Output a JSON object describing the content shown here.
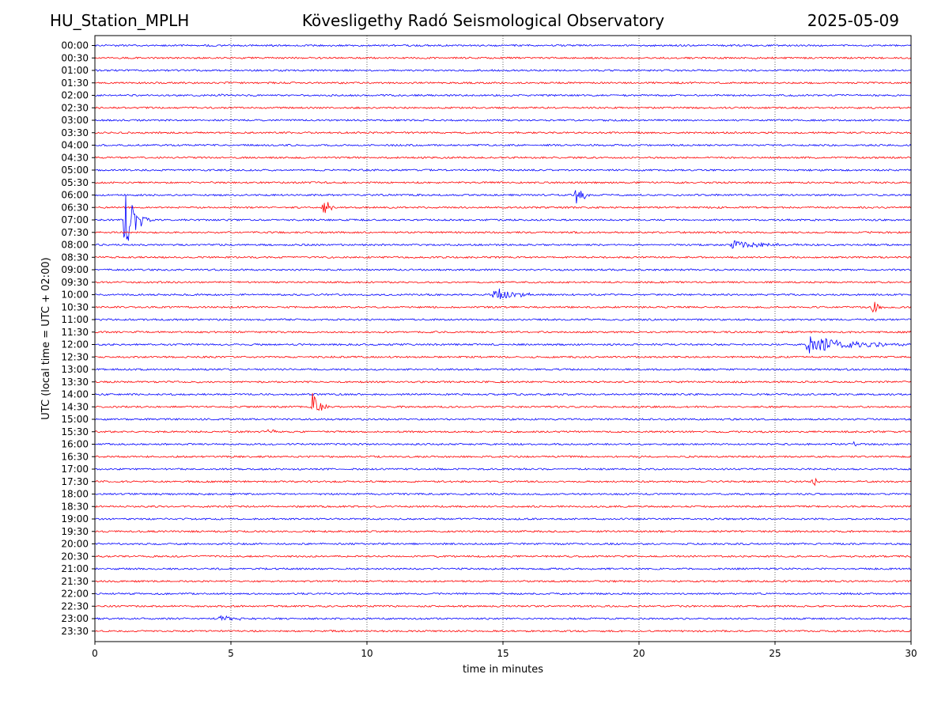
{
  "header": {
    "station": "HU_Station_MPLH",
    "observatory": "Kövesligethy Radó Seismological Observatory",
    "date": "2025-05-09"
  },
  "chart_data": {
    "type": "line",
    "title": "Kövesligethy Radó Seismological Observatory",
    "xlabel": "time in minutes",
    "ylabel": "UTC (local time = UTC + 02:00)",
    "xlim": [
      0,
      30
    ],
    "x_ticks": [
      "0",
      "5",
      "10",
      "15",
      "20",
      "25",
      "30"
    ],
    "x_tick_values": [
      0,
      5,
      10,
      15,
      20,
      25,
      30
    ],
    "grid": "vertical dotted at each x tick",
    "trace_colors": [
      "#0000ff",
      "#ff0000"
    ],
    "rows": [
      "00:00",
      "00:30",
      "01:00",
      "01:30",
      "02:00",
      "02:30",
      "03:00",
      "03:30",
      "04:00",
      "04:30",
      "05:00",
      "05:30",
      "06:00",
      "06:30",
      "07:00",
      "07:30",
      "08:00",
      "08:30",
      "09:00",
      "09:30",
      "10:00",
      "10:30",
      "11:00",
      "11:30",
      "12:00",
      "12:30",
      "13:00",
      "13:30",
      "14:00",
      "14:30",
      "15:00",
      "15:30",
      "16:00",
      "16:30",
      "17:00",
      "17:30",
      "18:00",
      "18:30",
      "19:00",
      "19:30",
      "20:00",
      "20:30",
      "21:00",
      "21:30",
      "22:00",
      "22:30",
      "23:00",
      "23:30"
    ],
    "events": [
      {
        "row": "02:00",
        "minute": 4.6,
        "amplitude": 0.3,
        "duration": 0.1
      },
      {
        "row": "06:00",
        "minute": 17.7,
        "amplitude": 1.4,
        "duration": 0.3
      },
      {
        "row": "06:30",
        "minute": 8.4,
        "amplitude": 1.0,
        "duration": 0.3
      },
      {
        "row": "07:00",
        "minute": 1.1,
        "amplitude": 3.0,
        "duration": 0.6
      },
      {
        "row": "08:00",
        "minute": 23.4,
        "amplitude": 0.5,
        "duration": 1.8
      },
      {
        "row": "10:00",
        "minute": 14.7,
        "amplitude": 1.2,
        "duration": 0.9
      },
      {
        "row": "10:30",
        "minute": 28.6,
        "amplitude": 0.7,
        "duration": 0.4
      },
      {
        "row": "12:00",
        "minute": 26.2,
        "amplitude": 0.8,
        "duration": 3.0
      },
      {
        "row": "14:30",
        "minute": 8.0,
        "amplitude": 1.3,
        "duration": 0.4
      },
      {
        "row": "15:30",
        "minute": 6.4,
        "amplitude": 0.4,
        "duration": 0.2
      },
      {
        "row": "16:00",
        "minute": 27.9,
        "amplitude": 0.3,
        "duration": 0.1
      },
      {
        "row": "17:30",
        "minute": 26.4,
        "amplitude": 0.5,
        "duration": 0.3
      },
      {
        "row": "23:00",
        "minute": 4.6,
        "amplitude": 0.35,
        "duration": 1.0
      }
    ]
  }
}
